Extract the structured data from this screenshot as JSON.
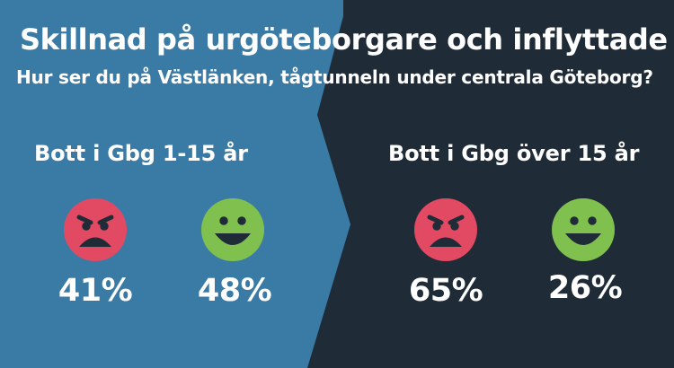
{
  "title": "Skillnad på urgöteborgare och inflyttade",
  "subtitle": "Hur ser du på Västlänken, tågtunneln under centrala Göteborg?",
  "colors": {
    "left_background": "#3a7ba6",
    "right_background": "#1f2b36",
    "negative_face": "#e24a63",
    "positive_face": "#80c04f",
    "face_features": "#1f2b36"
  },
  "groups": [
    {
      "label": "Bott i Gbg 1-15 år",
      "negative": {
        "icon": "angry-face-icon",
        "value": 41,
        "label": "41%"
      },
      "positive": {
        "icon": "smiling-face-icon",
        "value": 48,
        "label": "48%"
      }
    },
    {
      "label": "Bott i Gbg över 15 år",
      "negative": {
        "icon": "angry-face-icon",
        "value": 65,
        "label": "65%"
      },
      "positive": {
        "icon": "smiling-face-icon",
        "value": 26,
        "label": "26%"
      }
    }
  ],
  "chart_data": {
    "type": "table",
    "title": "Skillnad på urgöteborgare och inflyttade",
    "subtitle": "Hur ser du på Västlänken, tågtunneln under centrala Göteborg?",
    "columns": [
      "Bott i Gbg 1-15 år",
      "Bott i Gbg över 15 år"
    ],
    "rows": [
      {
        "icon": "angry-face-icon",
        "values": [
          41,
          65
        ]
      },
      {
        "icon": "smiling-face-icon",
        "values": [
          48,
          26
        ]
      }
    ],
    "unit": "%"
  }
}
